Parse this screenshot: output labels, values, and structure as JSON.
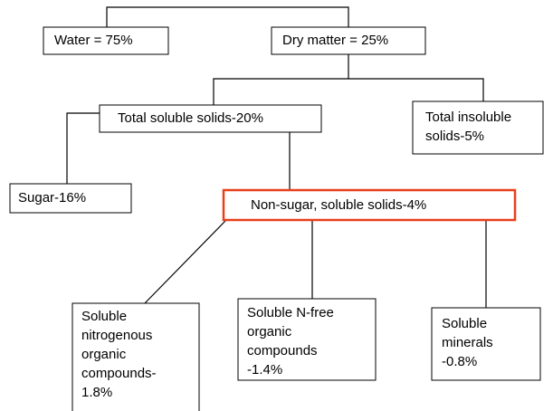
{
  "nodes": [
    {
      "lines": [
        "Water = 75%"
      ]
    },
    {
      "lines": [
        "Dry matter = 25%"
      ]
    },
    {
      "lines": [
        "Total soluble solids-20%"
      ]
    },
    {
      "lines": [
        "Total insoluble",
        "solids-5%"
      ]
    },
    {
      "lines": [
        "Sugar-16%"
      ]
    },
    {
      "lines": [
        "Non-sugar, soluble solids-4%"
      ]
    },
    {
      "lines": [
        "Soluble",
        "nitrogenous",
        "organic",
        "compounds-",
        "1.8%"
      ]
    },
    {
      "lines": [
        "Soluble N-free",
        "organic",
        "compounds",
        "-1.4%"
      ]
    },
    {
      "lines": [
        "Soluble",
        "minerals",
        "-0.8%"
      ]
    }
  ]
}
